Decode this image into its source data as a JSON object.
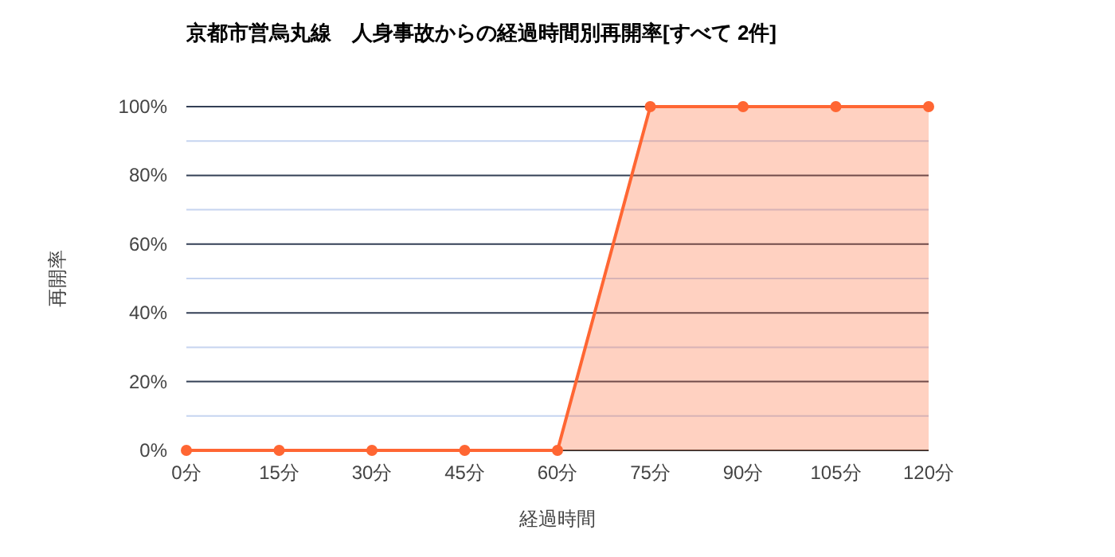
{
  "chart_data": {
    "type": "area",
    "title": "京都市営烏丸線　人身事故からの経過時間別再開率[すべて 2件]",
    "xlabel": "経過時間",
    "ylabel": "再開率",
    "categories": [
      "0分",
      "15分",
      "30分",
      "45分",
      "60分",
      "75分",
      "90分",
      "105分",
      "120分"
    ],
    "series": [
      {
        "color": "#ff6633",
        "values": [
          0,
          0,
          0,
          0,
          0,
          100,
          100,
          100,
          100
        ]
      }
    ],
    "ylim": [
      0,
      100
    ],
    "yticks": [
      {
        "value": 0,
        "label": "0%"
      },
      {
        "value": 10,
        "label": null
      },
      {
        "value": 20,
        "label": "20%"
      },
      {
        "value": 30,
        "label": null
      },
      {
        "value": 40,
        "label": "40%"
      },
      {
        "value": 50,
        "label": null
      },
      {
        "value": 60,
        "label": "60%"
      },
      {
        "value": 70,
        "label": null
      },
      {
        "value": 80,
        "label": "80%"
      },
      {
        "value": 90,
        "label": null
      },
      {
        "value": 100,
        "label": "100%"
      }
    ],
    "grid": "y",
    "marker": "circle"
  }
}
